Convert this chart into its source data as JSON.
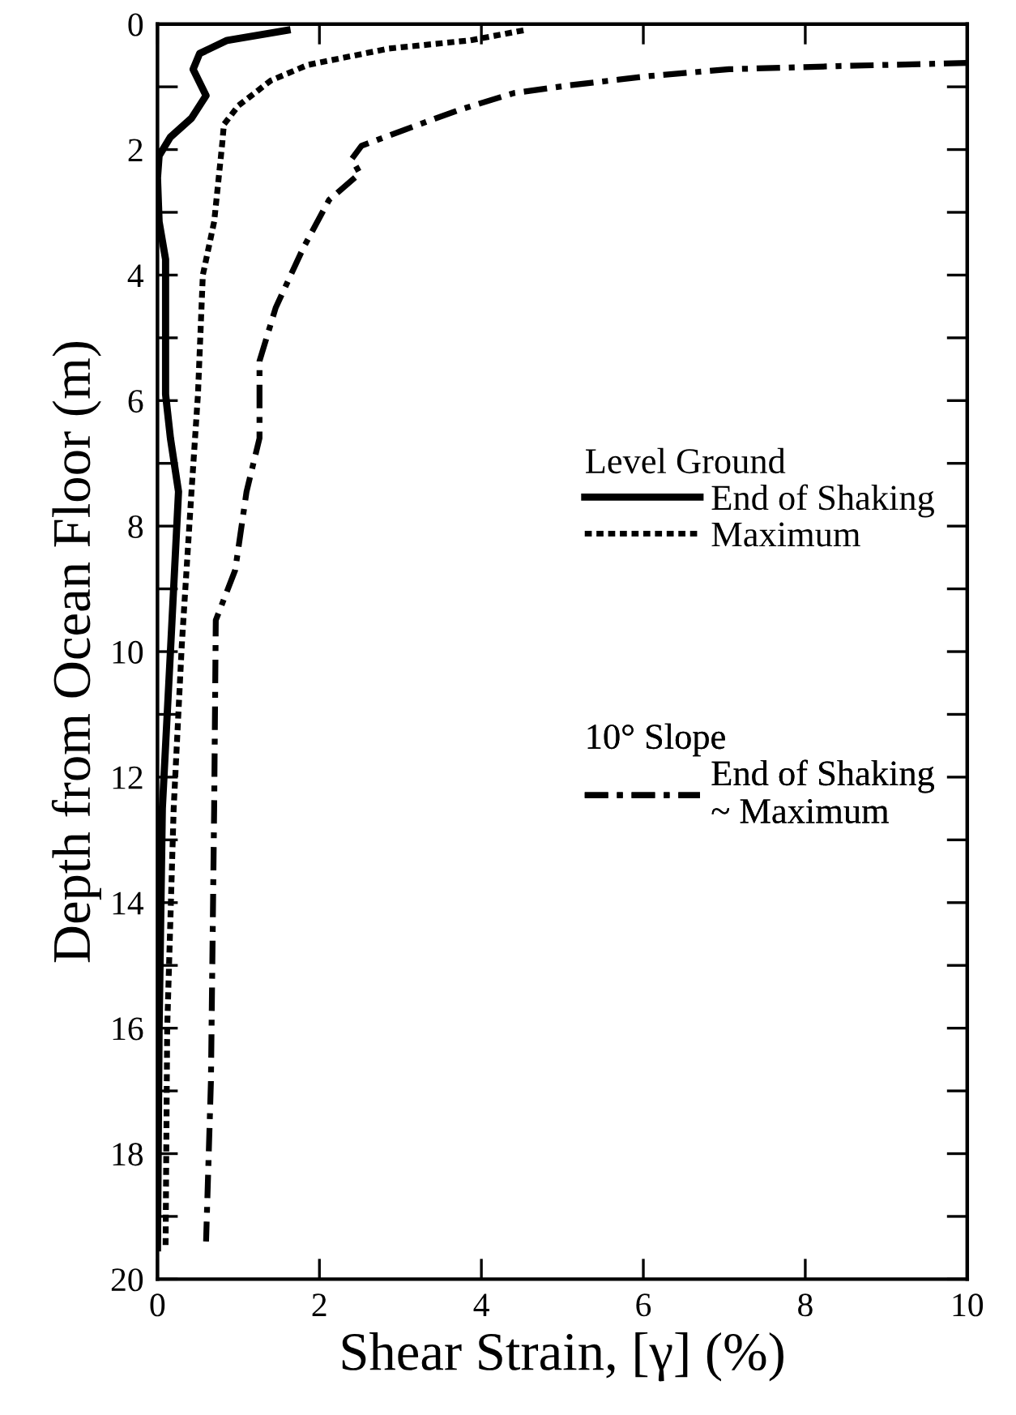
{
  "chart_data": {
    "type": "line",
    "xlabel": "Shear Strain, [γ] (%)",
    "ylabel": "Depth from Ocean Floor (m)",
    "annotations": [
      "Level Ground",
      "10° Slope"
    ],
    "xlim": [
      0,
      10
    ],
    "xticks": [
      0,
      2,
      4,
      6,
      8,
      10
    ],
    "ylim": [
      20,
      0
    ],
    "yticks": [
      0,
      {
        "value": 1,
        "label": null
      },
      2,
      {
        "value": 3,
        "label": null
      },
      4,
      {
        "value": 5,
        "label": null
      },
      6,
      {
        "value": 7,
        "label": null
      },
      8,
      {
        "value": 9,
        "label": null
      },
      10,
      {
        "value": 11,
        "label": null
      },
      12,
      {
        "value": 13,
        "label": null
      },
      14,
      {
        "value": 15,
        "label": null
      },
      16,
      {
        "value": 17,
        "label": null
      },
      18,
      {
        "value": 19,
        "label": null
      },
      20
    ],
    "grid": false,
    "legend": "right",
    "marker": "none",
    "series": [
      {
        "name": "End of Shaking",
        "color": "#000000",
        "line_style": "solid",
        "x": [
          1.6,
          0.86,
          0.52,
          0.44,
          0.6,
          0.42,
          0.16,
          0.02,
          0,
          0.02,
          0.1,
          0.1,
          0.16,
          0.26,
          0.16,
          0.06,
          0.02,
          0
        ],
        "values": [
          0.1,
          0.26,
          0.47,
          0.72,
          1.14,
          1.5,
          1.8,
          2.1,
          2.45,
          3.15,
          3.75,
          5.9,
          6.6,
          7.45,
          10.0,
          12.5,
          16,
          19.5
        ]
      },
      {
        "name": "Maximum",
        "color": "#000000",
        "line_style": "dotted",
        "x": [
          4.52,
          3.86,
          2.86,
          1.86,
          1.4,
          1.0,
          0.82,
          0.8,
          0.7,
          0.56,
          0.5,
          0.42,
          0.3,
          0.2,
          0.12,
          0.1
        ],
        "values": [
          0.1,
          0.26,
          0.39,
          0.65,
          0.9,
          1.3,
          1.6,
          1.9,
          3.15,
          4.0,
          5.9,
          7.45,
          9.9,
          12.5,
          16,
          19.5
        ]
      },
      {
        "name": "End of Shaking\n~ Maximum",
        "color": "#000000",
        "line_style": "dashdot",
        "x": [
          10.0,
          8.4,
          7.06,
          6.06,
          5.06,
          4.4,
          3.72,
          3.06,
          2.52,
          2.4,
          2.5,
          2.12,
          1.8,
          1.46,
          1.26,
          1.26,
          1.1,
          0.96,
          0.72,
          0.7,
          0.66,
          0.6
        ],
        "values": [
          0.62,
          0.67,
          0.72,
          0.83,
          0.98,
          1.1,
          1.37,
          1.68,
          1.94,
          2.15,
          2.38,
          2.8,
          3.57,
          4.52,
          5.37,
          6.6,
          7.45,
          8.7,
          9.5,
          12.5,
          16.85,
          19.4
        ]
      }
    ]
  }
}
